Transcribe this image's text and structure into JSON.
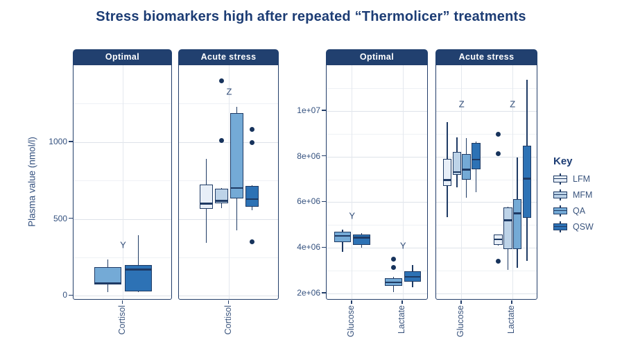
{
  "title": "Stress biomarkers high after repeated “Thermolicer” treatments",
  "colors": {
    "navy_border": "#1e3a64",
    "strip_bg": "#21406f",
    "title_text": "#1c3c74",
    "axis_text": "#33507e",
    "grid_major": "#dde2e9",
    "grid_minor": "#eef1f5"
  },
  "legend": {
    "title": "Key",
    "entries": [
      {
        "label": "LFM",
        "fill": "#e8eff8"
      },
      {
        "label": "MFM",
        "fill": "#bdd3e8"
      },
      {
        "label": "QA",
        "fill": "#74aad6"
      },
      {
        "label": "QSW",
        "fill": "#2d72b5"
      }
    ]
  },
  "chart_data": [
    {
      "type": "boxplot",
      "ylabel": "Plasma value (nmol/l)",
      "ylim": [
        -30,
        1500
      ],
      "yticks": [
        {
          "v": 0,
          "label": "0"
        },
        {
          "v": 500,
          "label": "500"
        },
        {
          "v": 1000,
          "label": "1000"
        }
      ],
      "minor_ticks": [
        250,
        750,
        1250
      ],
      "legend_position": "right",
      "grid": true,
      "facets": [
        {
          "label": "Optimal",
          "categories": [
            "Cortisol"
          ],
          "boxes": [
            {
              "category": "Cortisol",
              "series": "QA",
              "low": 22,
              "q1": 76,
              "median": 82,
              "q3": 187,
              "high": 237,
              "outliers": []
            },
            {
              "category": "Cortisol",
              "series": "QSW",
              "low": 25,
              "q1": 28,
              "median": 176,
              "q3": 200,
              "high": 393,
              "outliers": []
            }
          ],
          "annotations": [
            {
              "text": "Y",
              "category": "Cortisol",
              "y": 330
            }
          ]
        },
        {
          "label": "Acute stress",
          "categories": [
            "Cortisol"
          ],
          "boxes": [
            {
              "category": "Cortisol",
              "series": "LFM",
              "low": 345,
              "q1": 565,
              "median": 605,
              "q3": 722,
              "high": 890,
              "outliers": []
            },
            {
              "category": "Cortisol",
              "series": "MFM",
              "low": 570,
              "q1": 600,
              "median": 622,
              "q3": 695,
              "high": 700,
              "outliers": [
                1400,
                1010
              ]
            },
            {
              "category": "Cortisol",
              "series": "QA",
              "low": 424,
              "q1": 634,
              "median": 705,
              "q3": 1190,
              "high": 1230,
              "outliers": []
            },
            {
              "category": "Cortisol",
              "series": "QSW",
              "low": 556,
              "q1": 580,
              "median": 634,
              "q3": 714,
              "high": 718,
              "outliers": [
                1082,
                996,
                352
              ]
            }
          ],
          "annotations": [
            {
              "text": "Z",
              "category": "Cortisol",
              "y": 1330
            }
          ]
        }
      ]
    },
    {
      "type": "boxplot",
      "ylabel": "",
      "ylim": [
        1700000,
        12000000
      ],
      "yticks": [
        {
          "v": 2000000,
          "label": "2e+06"
        },
        {
          "v": 4000000,
          "label": "4e+06"
        },
        {
          "v": 6000000,
          "label": "6e+06"
        },
        {
          "v": 8000000,
          "label": "8e+06"
        },
        {
          "v": 10000000,
          "label": "1e+07"
        }
      ],
      "minor_ticks": [
        3000000,
        5000000,
        7000000,
        9000000,
        11000000
      ],
      "grid": true,
      "facets": [
        {
          "label": "Optimal",
          "categories": [
            "Glucose",
            "Lactate"
          ],
          "boxes": [
            {
              "category": "Glucose",
              "series": "QA",
              "low": 3820000,
              "q1": 4240000,
              "median": 4550000,
              "q3": 4700000,
              "high": 4800000,
              "outliers": []
            },
            {
              "category": "Glucose",
              "series": "QSW",
              "low": 4000000,
              "q1": 4120000,
              "median": 4480000,
              "q3": 4580000,
              "high": 4650000,
              "outliers": []
            },
            {
              "category": "Lactate",
              "series": "QA",
              "low": 2060000,
              "q1": 2330000,
              "median": 2520000,
              "q3": 2670000,
              "high": 2720000,
              "outliers": [
                3520000,
                3150000
              ]
            },
            {
              "category": "Lactate",
              "series": "QSW",
              "low": 2270000,
              "q1": 2520000,
              "median": 2760000,
              "q3": 2970000,
              "high": 3240000,
              "outliers": []
            }
          ],
          "annotations": [
            {
              "text": "Y",
              "category": "Glucose",
              "y": 5420000
            },
            {
              "text": "Y",
              "category": "Lactate",
              "y": 4100000
            }
          ]
        },
        {
          "label": "Acute stress",
          "categories": [
            "Glucose",
            "Lactate"
          ],
          "boxes": [
            {
              "category": "Glucose",
              "series": "LFM",
              "low": 5350000,
              "q1": 6700000,
              "median": 7000000,
              "q3": 7900000,
              "high": 9500000,
              "outliers": []
            },
            {
              "category": "Glucose",
              "series": "MFM",
              "low": 6650000,
              "q1": 7200000,
              "median": 7350000,
              "q3": 8200000,
              "high": 8850000,
              "outliers": []
            },
            {
              "category": "Glucose",
              "series": "QA",
              "low": 6200000,
              "q1": 7000000,
              "median": 7450000,
              "q3": 8100000,
              "high": 8800000,
              "outliers": []
            },
            {
              "category": "Glucose",
              "series": "QSW",
              "low": 6450000,
              "q1": 7450000,
              "median": 7900000,
              "q3": 8600000,
              "high": 8650000,
              "outliers": []
            },
            {
              "category": "Lactate",
              "series": "LFM",
              "low": 4100000,
              "q1": 4120000,
              "median": 4400000,
              "q3": 4580000,
              "high": 4600000,
              "outliers": [
                8970000,
                8120000,
                3420000
              ]
            },
            {
              "category": "Lactate",
              "series": "MFM",
              "low": 3030000,
              "q1": 3940000,
              "median": 5240000,
              "q3": 5760000,
              "high": 5800000,
              "outliers": []
            },
            {
              "category": "Lactate",
              "series": "QA",
              "low": 3120000,
              "q1": 3940000,
              "median": 5550000,
              "q3": 6150000,
              "high": 7970000,
              "outliers": []
            },
            {
              "category": "Lactate",
              "series": "QSW",
              "low": 3420000,
              "q1": 5330000,
              "median": 7060000,
              "q3": 8480000,
              "high": 11360000,
              "outliers": []
            }
          ],
          "annotations": [
            {
              "text": "Z",
              "category": "Glucose",
              "y": 10300000
            },
            {
              "text": "Z",
              "category": "Lactate",
              "y": 10300000
            }
          ]
        }
      ]
    }
  ]
}
